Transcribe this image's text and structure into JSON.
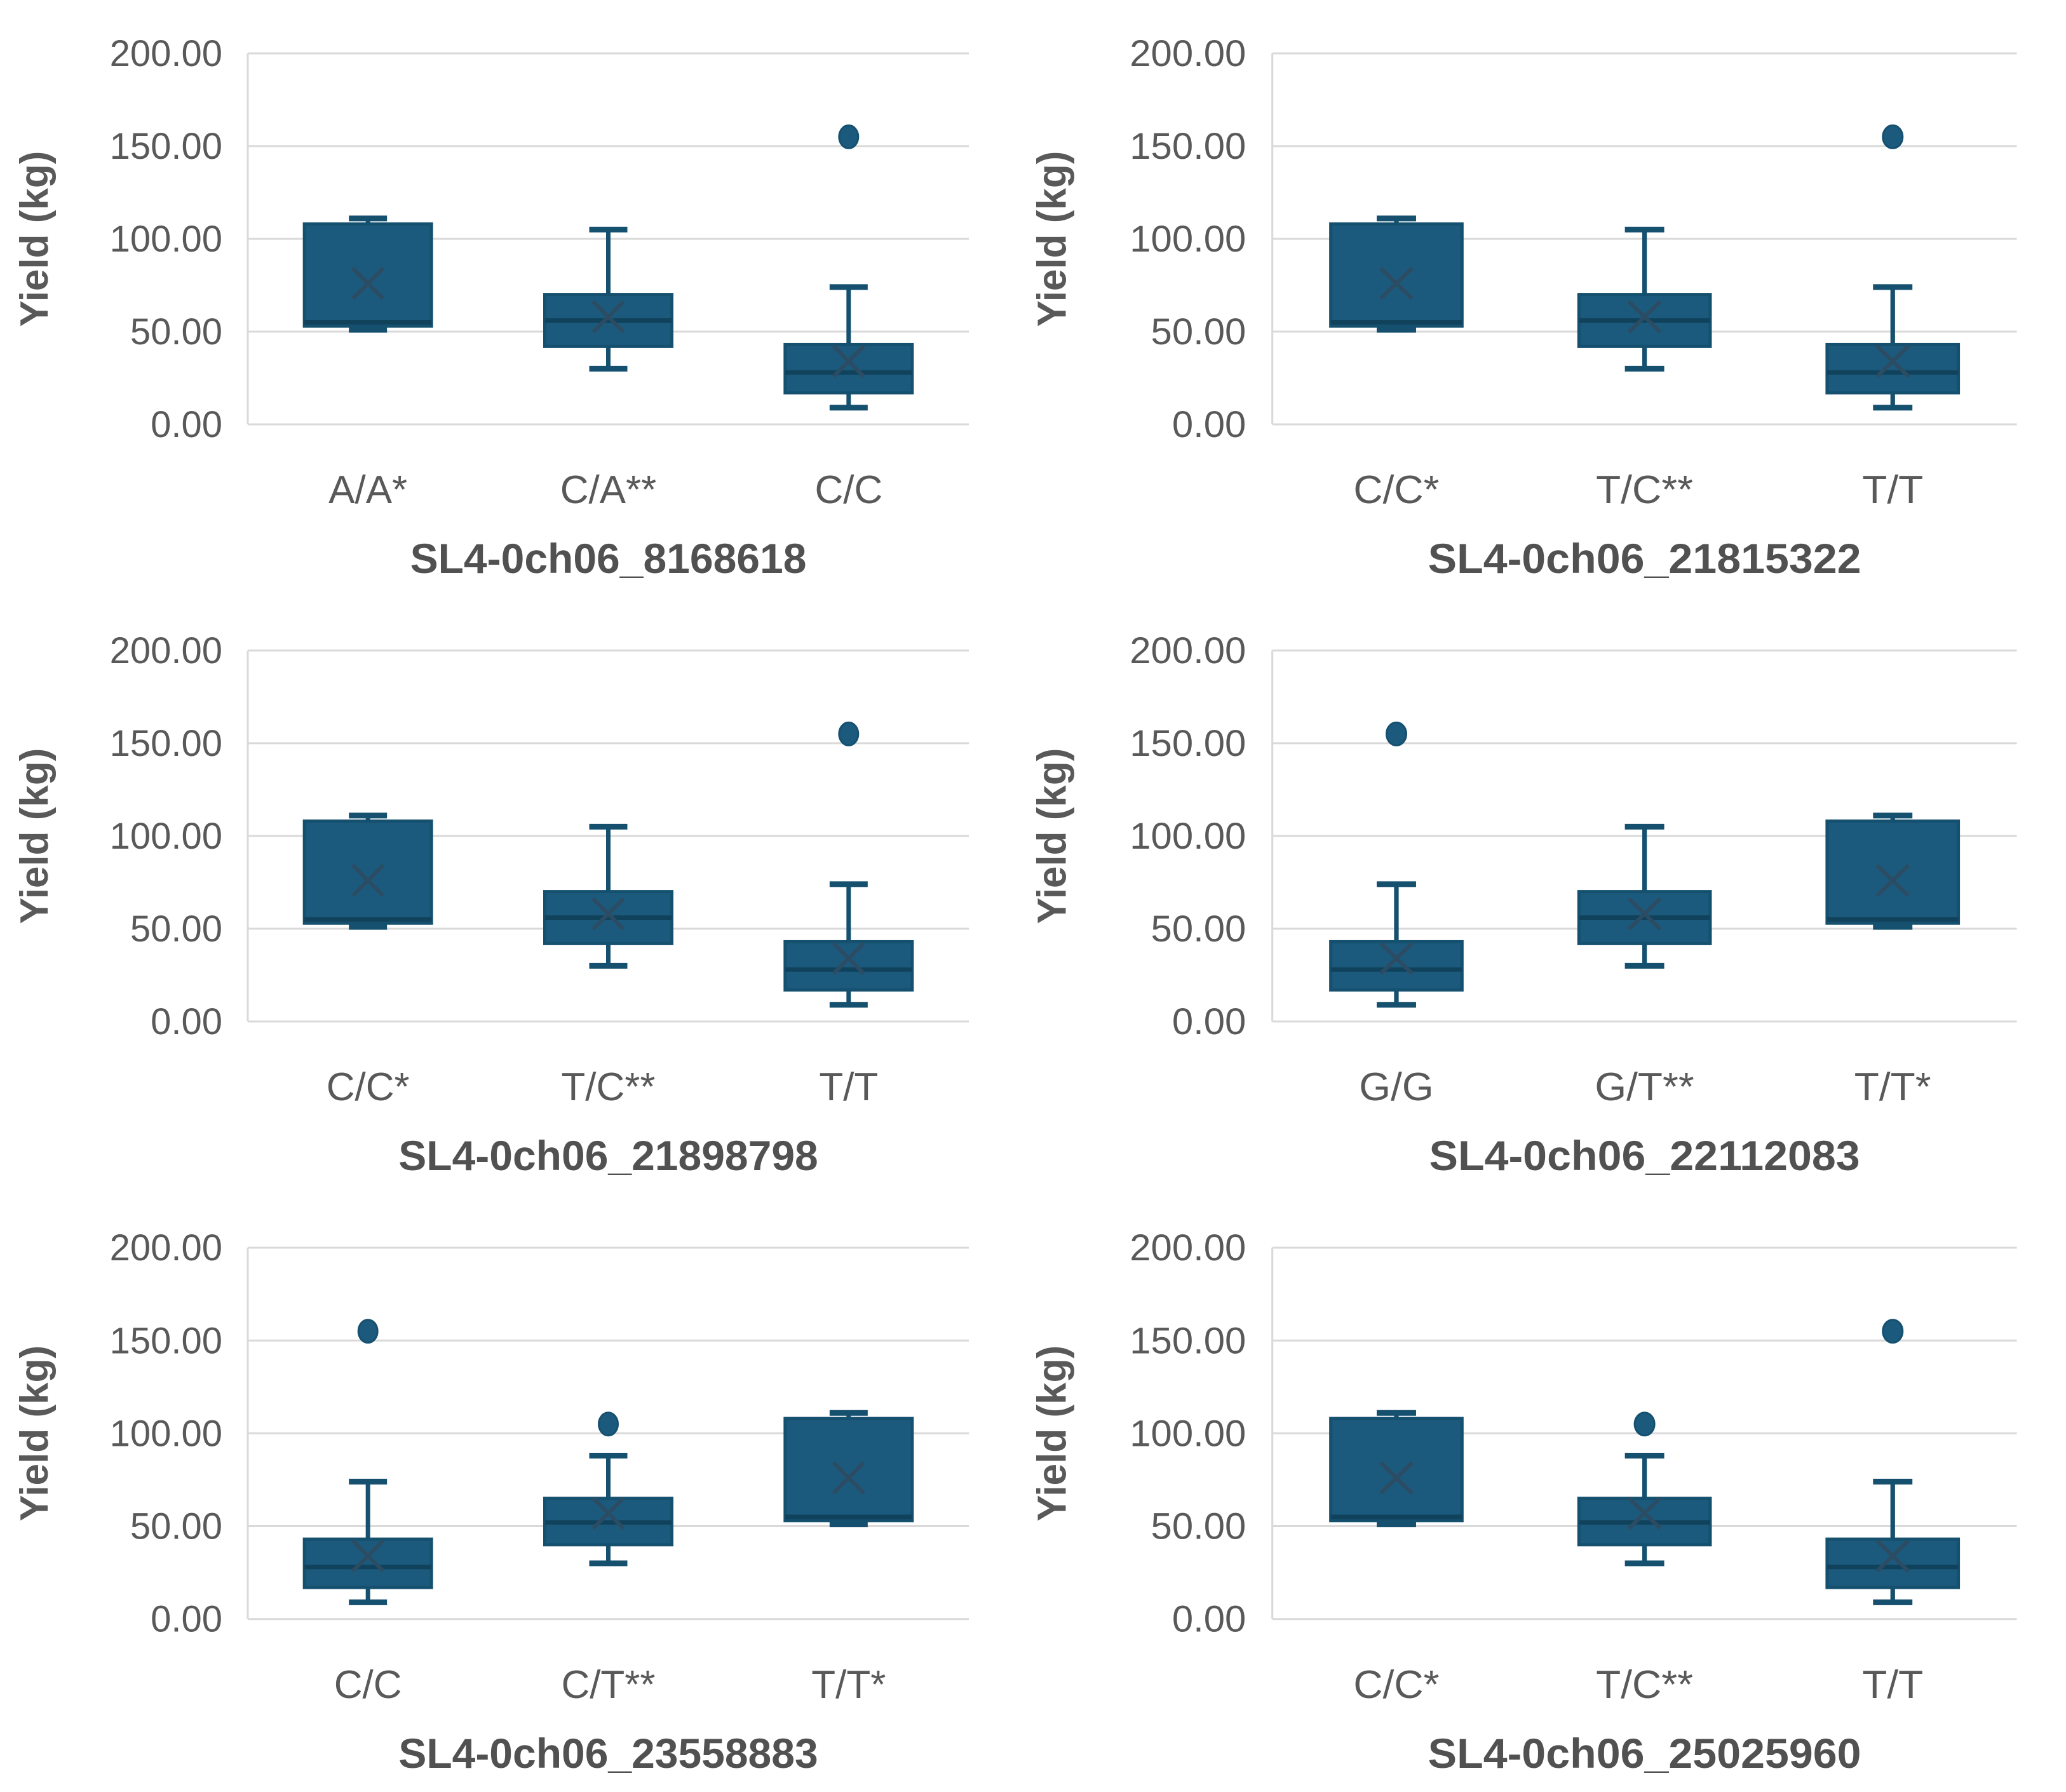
{
  "figure": {
    "description_visible_text_only": "Grid of six box-and-whisker charts of Yield (kg) by SNP genotype",
    "columns": 2,
    "rows": 3
  },
  "colors": {
    "box_fill": "#1C5A7D",
    "box_stroke": "#15506F",
    "whisker": "#15506F",
    "median_line": "#11425C",
    "mean_marker": "#2B4C63",
    "outlier_fill": "#1C5A7D",
    "gridline": "#D9D9D9",
    "axis_text": "#595959",
    "category_text": "#595959",
    "panel_title_text": "#515151",
    "background": "#FFFFFF"
  },
  "y_axis": {
    "label": "Yield (kg)",
    "min": 0,
    "max": 200,
    "step": 50,
    "tick_labels": [
      "0.00",
      "50.00",
      "100.00",
      "150.00",
      "200.00"
    ]
  },
  "chart_data": [
    {
      "type": "box",
      "title": "SL4-0ch06_8168618",
      "ylabel": "Yield (kg)",
      "ylim": [
        0,
        200
      ],
      "grid": true,
      "groups": [
        {
          "label": "A/A*",
          "min": 51,
          "q1": 53,
          "median": 55,
          "q3": 108,
          "max": 111,
          "mean": 76,
          "outliers": []
        },
        {
          "label": "C/A**",
          "min": 30,
          "q1": 42,
          "median": 56,
          "q3": 70,
          "max": 105,
          "mean": 58,
          "outliers": []
        },
        {
          "label": "C/C",
          "min": 9,
          "q1": 17,
          "median": 28,
          "q3": 43,
          "max": 74,
          "mean": 34,
          "outliers": [
            155
          ]
        }
      ]
    },
    {
      "type": "box",
      "title": "SL4-0ch06_21815322",
      "ylabel": "Yield (kg)",
      "ylim": [
        0,
        200
      ],
      "grid": true,
      "groups": [
        {
          "label": "C/C*",
          "min": 51,
          "q1": 53,
          "median": 55,
          "q3": 108,
          "max": 111,
          "mean": 76,
          "outliers": []
        },
        {
          "label": "T/C**",
          "min": 30,
          "q1": 42,
          "median": 56,
          "q3": 70,
          "max": 105,
          "mean": 58,
          "outliers": []
        },
        {
          "label": "T/T",
          "min": 9,
          "q1": 17,
          "median": 28,
          "q3": 43,
          "max": 74,
          "mean": 34,
          "outliers": [
            155
          ]
        }
      ]
    },
    {
      "type": "box",
      "title": "SL4-0ch06_21898798",
      "ylabel": "Yield (kg)",
      "ylim": [
        0,
        200
      ],
      "grid": true,
      "groups": [
        {
          "label": "C/C*",
          "min": 51,
          "q1": 53,
          "median": 55,
          "q3": 108,
          "max": 111,
          "mean": 76,
          "outliers": []
        },
        {
          "label": "T/C**",
          "min": 30,
          "q1": 42,
          "median": 56,
          "q3": 70,
          "max": 105,
          "mean": 58,
          "outliers": []
        },
        {
          "label": "T/T",
          "min": 9,
          "q1": 17,
          "median": 28,
          "q3": 43,
          "max": 74,
          "mean": 34,
          "outliers": [
            155
          ]
        }
      ]
    },
    {
      "type": "box",
      "title": "SL4-0ch06_22112083",
      "ylabel": "Yield (kg)",
      "ylim": [
        0,
        200
      ],
      "grid": true,
      "groups": [
        {
          "label": "G/G",
          "min": 9,
          "q1": 17,
          "median": 28,
          "q3": 43,
          "max": 74,
          "mean": 34,
          "outliers": [
            155
          ]
        },
        {
          "label": "G/T**",
          "min": 30,
          "q1": 42,
          "median": 56,
          "q3": 70,
          "max": 105,
          "mean": 58,
          "outliers": []
        },
        {
          "label": "T/T*",
          "min": 51,
          "q1": 53,
          "median": 55,
          "q3": 108,
          "max": 111,
          "mean": 76,
          "outliers": []
        }
      ]
    },
    {
      "type": "box",
      "title": "SL4-0ch06_23558883",
      "ylabel": "Yield (kg)",
      "ylim": [
        0,
        200
      ],
      "grid": true,
      "groups": [
        {
          "label": "C/C",
          "min": 9,
          "q1": 17,
          "median": 28,
          "q3": 43,
          "max": 74,
          "mean": 34,
          "outliers": [
            155
          ]
        },
        {
          "label": "C/T**",
          "min": 30,
          "q1": 40,
          "median": 52,
          "q3": 65,
          "max": 88,
          "mean": 57,
          "outliers": [
            105
          ]
        },
        {
          "label": "T/T*",
          "min": 51,
          "q1": 53,
          "median": 55,
          "q3": 108,
          "max": 111,
          "mean": 76,
          "outliers": []
        }
      ]
    },
    {
      "type": "box",
      "title": "SL4-0ch06_25025960",
      "ylabel": "Yield (kg)",
      "ylim": [
        0,
        200
      ],
      "grid": true,
      "groups": [
        {
          "label": "C/C*",
          "min": 51,
          "q1": 53,
          "median": 55,
          "q3": 108,
          "max": 111,
          "mean": 76,
          "outliers": []
        },
        {
          "label": "T/C**",
          "min": 30,
          "q1": 40,
          "median": 52,
          "q3": 65,
          "max": 88,
          "mean": 57,
          "outliers": [
            105
          ]
        },
        {
          "label": "T/T",
          "min": 9,
          "q1": 17,
          "median": 28,
          "q3": 43,
          "max": 74,
          "mean": 34,
          "outliers": [
            155
          ]
        }
      ]
    }
  ]
}
